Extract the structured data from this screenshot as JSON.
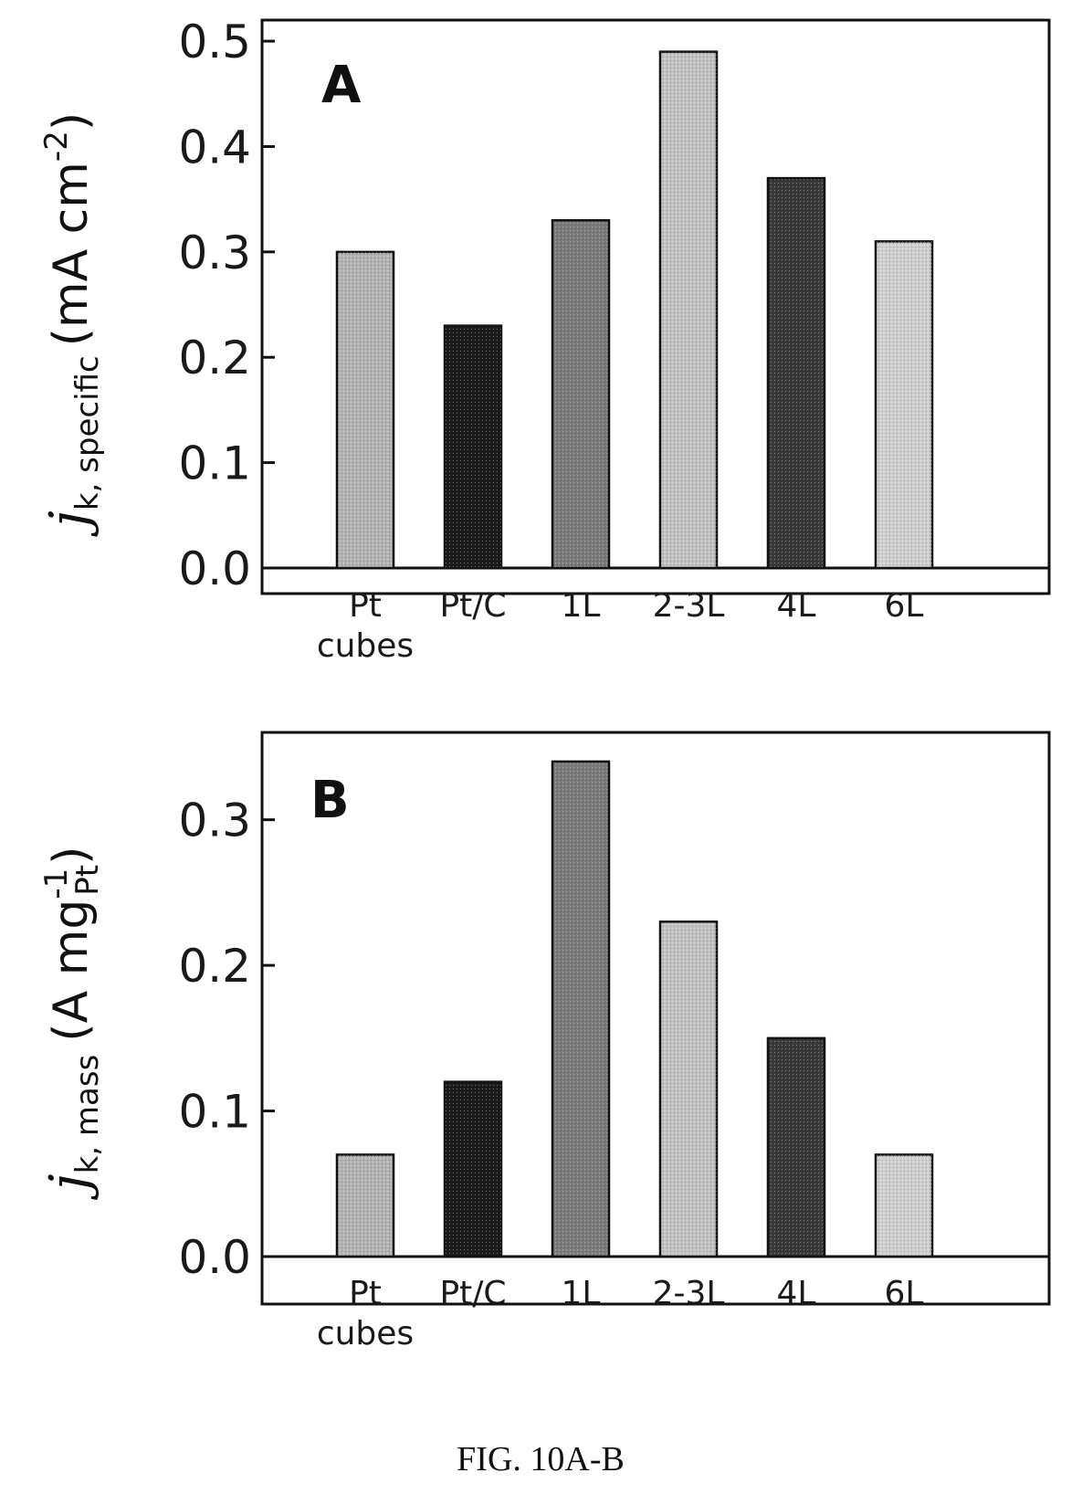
{
  "chart_data": [
    {
      "type": "bar",
      "panel_label": "A",
      "categories": [
        "Pt cubes",
        "Pt/C",
        "1L",
        "2-3L",
        "4L",
        "6L"
      ],
      "values": [
        0.3,
        0.23,
        0.33,
        0.49,
        0.37,
        0.31
      ],
      "ylim": [
        0,
        0.52
      ],
      "yticks": [
        "0.0",
        "0.1",
        "0.2",
        "0.3",
        "0.4",
        "0.5"
      ],
      "ylabel": {
        "j": "j",
        "sub": "k, specific",
        "unit": "(mA cm",
        "exp": "-2",
        "close": ")"
      },
      "bar_colors": [
        "#b4b4b4",
        "#1c1c1c",
        "#7c7c7c",
        "#c2c2c2",
        "#3a3a3a",
        "#d0d0d0"
      ]
    },
    {
      "type": "bar",
      "panel_label": "B",
      "categories": [
        "Pt cubes",
        "Pt/C",
        "1L",
        "2-3L",
        "4L",
        "6L"
      ],
      "values": [
        0.07,
        0.12,
        0.34,
        0.23,
        0.15,
        0.07
      ],
      "ylim": [
        0,
        0.36
      ],
      "yticks": [
        "0.0",
        "0.1",
        "0.2",
        "0.3"
      ],
      "ylabel": {
        "j": "j",
        "sub": "k, mass",
        "unit": "(A mg",
        "exp": "-1",
        "sub2": "Pt",
        "close": ")"
      },
      "bar_colors": [
        "#b4b4b4",
        "#1c1c1c",
        "#7c7c7c",
        "#c2c2c2",
        "#3a3a3a",
        "#d0d0d0"
      ]
    }
  ],
  "caption": "FIG. 10A-B"
}
